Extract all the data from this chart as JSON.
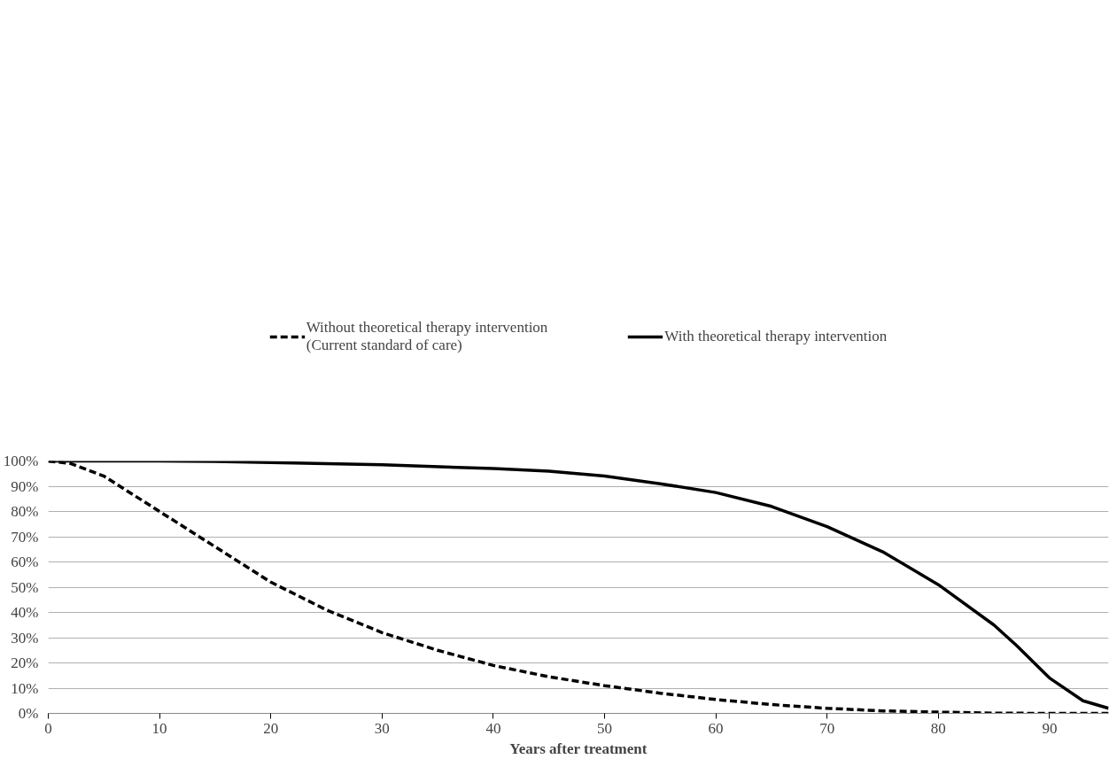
{
  "chart_data": {
    "type": "line",
    "xlabel": "Years after treatment",
    "xlim": [
      0,
      95.3
    ],
    "xticks": [
      0,
      10,
      20,
      30,
      40,
      50,
      60,
      70,
      80,
      90
    ],
    "ylim": [
      0,
      100
    ],
    "yticks": [
      {
        "value": 0,
        "label": "0%"
      },
      {
        "value": 10,
        "label": "10%"
      },
      {
        "value": 20,
        "label": "20%"
      },
      {
        "value": 30,
        "label": "30%"
      },
      {
        "value": 40,
        "label": "40%"
      },
      {
        "value": 50,
        "label": "50%"
      },
      {
        "value": 60,
        "label": "60%"
      },
      {
        "value": 70,
        "label": "70%"
      },
      {
        "value": 80,
        "label": "80%"
      },
      {
        "value": 90,
        "label": "90%"
      },
      {
        "value": 100,
        "label": "100%"
      }
    ],
    "grid": "y",
    "legend": "top",
    "marker": "none",
    "series": [
      {
        "name": "Without theoretical therapy intervention\n(Current standard of care)",
        "color": "#000000",
        "line_style": "dashed",
        "x": [
          0,
          2,
          5,
          10,
          15,
          20,
          25,
          30,
          35,
          40,
          45,
          50,
          55,
          60,
          65,
          70,
          75,
          80,
          85,
          90,
          95.3
        ],
        "values": [
          100,
          99,
          94,
          80,
          66,
          52,
          41,
          32,
          25,
          19,
          14.5,
          11,
          8,
          5.5,
          3.5,
          2,
          1,
          0.5,
          0.1,
          0,
          0
        ]
      },
      {
        "name": "With theoretical therapy intervention",
        "color": "#000000",
        "line_style": "solid",
        "x": [
          0,
          10,
          15,
          20,
          30,
          40,
          45,
          50,
          55,
          60,
          65,
          70,
          75,
          80,
          85,
          87,
          90,
          93,
          95.3
        ],
        "values": [
          100,
          100,
          99.8,
          99.4,
          98.5,
          97,
          96,
          94,
          91,
          87.5,
          82,
          74,
          64,
          51,
          35,
          27,
          14,
          5,
          2
        ]
      }
    ]
  }
}
